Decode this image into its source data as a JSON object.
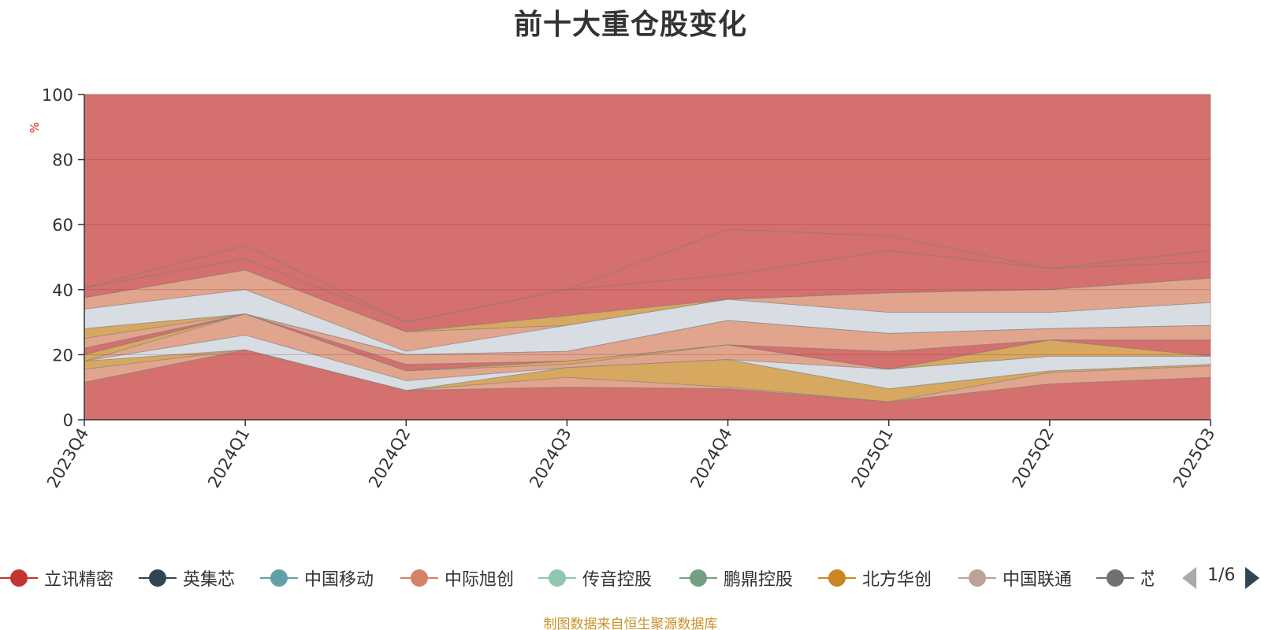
{
  "chart_data": {
    "type": "area",
    "title": "前十大重仓股变化",
    "xlabel": "",
    "ylabel": "%",
    "ylim": [
      0,
      100
    ],
    "yticks": [
      0,
      20,
      40,
      60,
      80,
      100
    ],
    "grid": true,
    "legend_placement": "bottom",
    "categories": [
      "2023Q4",
      "2024Q1",
      "2024Q2",
      "2024Q3",
      "2024Q4",
      "2025Q1",
      "2025Q2",
      "2025Q3"
    ],
    "series": [
      {
        "name": "立讯精密",
        "color": "#d4706d",
        "values": [
          8.0,
          0,
          0,
          4.8,
          5.6,
          0,
          0,
          0
        ]
      },
      {
        "name": "英集芯",
        "color": "#6d7f8c",
        "values": [
          3.8,
          0,
          0,
          0,
          0,
          0,
          0,
          0
        ]
      },
      {
        "name": "中国移动",
        "color": "#8fbfc2",
        "values": [
          0,
          6.8,
          3.2,
          0,
          0,
          0,
          0,
          0
        ]
      },
      {
        "name": "中际旭创",
        "color": "#e1a58d",
        "values": [
          0,
          5.7,
          2.3,
          0,
          0,
          0,
          0,
          0
        ]
      },
      {
        "name": "传音控股",
        "color": "#aad9c4",
        "values": [
          0,
          3.6,
          1.5,
          0,
          0,
          0,
          0,
          0
        ]
      },
      {
        "name": "鹏鼎控股",
        "color": "#95c4ab",
        "values": [
          0,
          0,
          2.0,
          0,
          0,
          0,
          0,
          0
        ]
      },
      {
        "name": "北方华创",
        "color": "#d7a860",
        "values": [
          0,
          0,
          0,
          0,
          0,
          0,
          4.8,
          6.0
        ]
      },
      {
        "name": "中国联通",
        "color": "#c9aaa3",
        "values": [
          0,
          5.0,
          0,
          0,
          0,
          0,
          0,
          0
        ]
      },
      {
        "name": "芯原股份",
        "color": "#8f9095",
        "values": [
          0,
          0,
          0,
          0,
          0,
          5.5,
          6.7,
          7.2
        ]
      }
    ],
    "other_colors": [
      "#d8dde4",
      "#6d7f8c",
      "#8fbfc2",
      "#e1a58d",
      "#aad9c4",
      "#95c4ab",
      "#d7a860",
      "#c9aaa3",
      "#8f9095",
      "#d4706d",
      "#d8dde4",
      "#d4706d"
    ],
    "band_tops": [
      [
        11.5,
        21.5,
        9.0,
        10.0,
        9.5,
        5.5,
        11.0,
        13.0
      ],
      [
        15.5,
        21.5,
        9.0,
        13.0,
        10.0,
        5.5,
        14.5,
        16.5
      ],
      [
        18.0,
        21.5,
        9.0,
        16.0,
        18.5,
        9.5,
        15.0,
        17.0
      ],
      [
        18.0,
        26.0,
        12.0,
        16.0,
        18.5,
        15.5,
        19.5,
        19.5
      ],
      [
        18.0,
        32.5,
        15.0,
        17.0,
        23.0,
        15.5,
        19.5,
        19.5
      ],
      [
        20.0,
        32.5,
        15.0,
        18.0,
        23.0,
        15.5,
        24.5,
        19.5
      ],
      [
        20.0,
        32.5,
        15.0,
        18.0,
        23.0,
        15.5,
        24.5,
        24.5
      ],
      [
        22.0,
        32.5,
        17.0,
        18.0,
        23.0,
        21.0,
        24.5,
        24.5
      ],
      [
        25.0,
        32.5,
        20.0,
        21.0,
        30.5,
        26.5,
        28.0,
        29.0
      ],
      [
        28.0,
        32.5,
        20.0,
        21.0,
        30.5,
        26.5,
        28.0,
        29.0
      ],
      [
        34.0,
        40.0,
        21.0,
        29.0,
        37.0,
        33.0,
        33.0,
        36.0
      ],
      [
        37.5,
        46.0,
        27.0,
        29.0,
        37.0,
        39.0,
        40.0,
        43.5
      ],
      [
        37.5,
        46.0,
        27.0,
        32.0,
        37.0,
        39.0,
        40.0,
        43.5
      ],
      [
        40.5,
        49.5,
        30.0,
        40.0,
        44.5,
        52.0,
        46.5,
        48.5
      ],
      [
        40.5,
        53.5,
        30.0,
        40.0,
        58.5,
        56.5,
        46.5,
        52.0
      ],
      [
        100,
        100,
        100,
        100,
        100,
        100,
        100,
        100
      ]
    ]
  },
  "legend": {
    "page": "1/6",
    "items": [
      {
        "label": "立讯精密",
        "color": "#c23531"
      },
      {
        "label": "英集芯",
        "color": "#2f4554"
      },
      {
        "label": "中国移动",
        "color": "#61a0a8"
      },
      {
        "label": "中际旭创",
        "color": "#d48265"
      },
      {
        "label": "传音控股",
        "color": "#91c7ae"
      },
      {
        "label": "鹏鼎控股",
        "color": "#749f83"
      },
      {
        "label": "北方华创",
        "color": "#ca8622"
      },
      {
        "label": "中国联通",
        "color": "#bda29a"
      },
      {
        "label": "芯原股份",
        "color": "#6e7074"
      }
    ]
  },
  "footer": {
    "source": "制图数据来自恒生聚源数据库"
  }
}
